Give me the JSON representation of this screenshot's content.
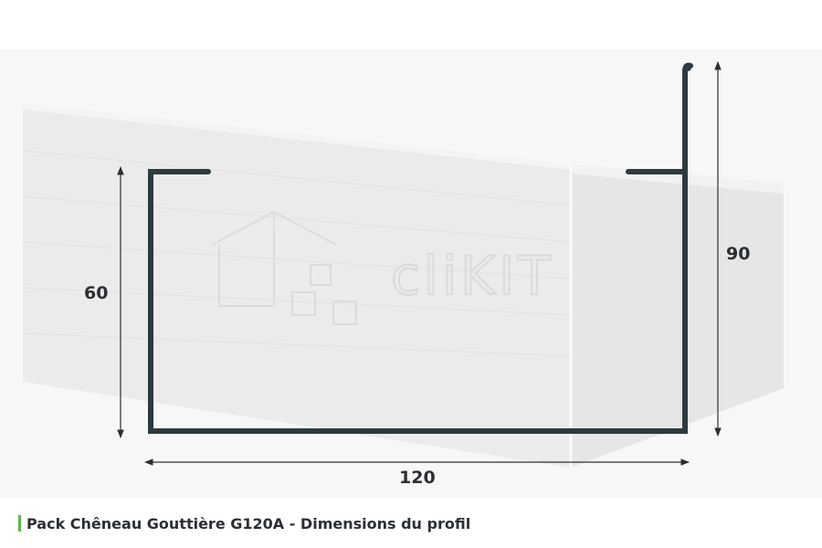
{
  "colors": {
    "profile": "#2d3a3e",
    "background": "#f7f7f7",
    "accent": "#5cb842",
    "dimension_line": "#2b2f33"
  },
  "dimensions": {
    "height_front": "60",
    "height_back": "90",
    "width": "120"
  },
  "watermark": {
    "text": "cliKIT"
  },
  "caption": {
    "text": "Pack Chêneau Gouttière G120A - Dimensions du profil"
  }
}
